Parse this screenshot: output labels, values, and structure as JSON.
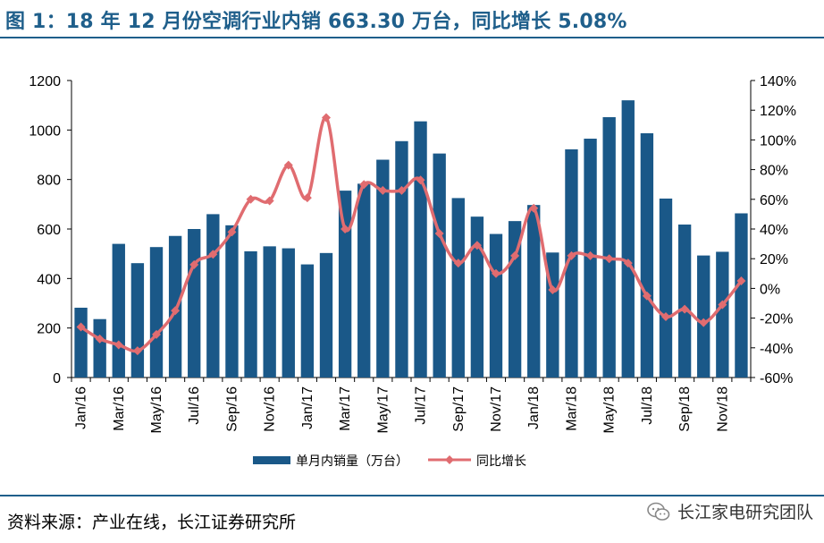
{
  "header": {
    "title": "图 1：18 年 12 月份空调行业内销 663.30 万台，同比增长 5.08%"
  },
  "footer": {
    "source": "资料来源：产业在线，长江证券研究所",
    "watermark": "长江家电研究团队",
    "watermark_icon": "wechat-icon"
  },
  "colors": {
    "accent": "#1f5f8b",
    "bar": "#1a5888",
    "line": "#e06c70"
  },
  "chart_data": {
    "type": "bar+line",
    "categories": [
      "Jan/16",
      "Feb/16",
      "Mar/16",
      "Apr/16",
      "May/16",
      "Jun/16",
      "Jul/16",
      "Aug/16",
      "Sep/16",
      "Oct/16",
      "Nov/16",
      "Dec/16",
      "Jan/17",
      "Feb/17",
      "Mar/17",
      "Apr/17",
      "May/17",
      "Jun/17",
      "Jul/17",
      "Aug/17",
      "Sep/17",
      "Oct/17",
      "Nov/17",
      "Dec/17",
      "Jan/18",
      "Feb/18",
      "Mar/18",
      "Apr/18",
      "May/18",
      "Jun/18",
      "Jul/18",
      "Aug/18",
      "Sep/18",
      "Oct/18",
      "Nov/18",
      "Dec/18"
    ],
    "x_tick_labels": [
      "Jan/16",
      "Mar/16",
      "May/16",
      "Jul/16",
      "Sep/16",
      "Nov/16",
      "Jan/17",
      "Mar/17",
      "May/17",
      "Jul/17",
      "Sep/17",
      "Nov/17",
      "Jan/18",
      "Mar/18",
      "May/18",
      "Jul/18",
      "Sep/18",
      "Nov/18"
    ],
    "series": [
      {
        "name": "单月内销量（万台）",
        "type": "bar",
        "axis": "left",
        "values": [
          282,
          236,
          540,
          462,
          527,
          572,
          600,
          660,
          615,
          510,
          530,
          522,
          457,
          503,
          755,
          783,
          880,
          955,
          1035,
          905,
          725,
          650,
          580,
          632,
          697,
          505,
          922,
          965,
          1052,
          1120,
          987,
          723,
          618,
          493,
          508,
          663.3
        ]
      },
      {
        "name": "同比增长",
        "type": "line",
        "axis": "right",
        "values": [
          -26,
          -34,
          -38,
          -42,
          -31,
          -15,
          16,
          23,
          38,
          60,
          59,
          83,
          61,
          115,
          40,
          70,
          66,
          66,
          73,
          37,
          17,
          29,
          10,
          22,
          54,
          -1,
          22,
          22,
          20,
          17,
          -5,
          -19,
          -14,
          -23,
          -11,
          5.08
        ]
      }
    ],
    "y_left": {
      "min": 0,
      "max": 1200,
      "step": 200,
      "tick_labels": [
        "0",
        "200",
        "400",
        "600",
        "800",
        "1000",
        "1200"
      ]
    },
    "y_right": {
      "min": -60,
      "max": 140,
      "step": 20,
      "tick_labels": [
        "-60%",
        "-40%",
        "-20%",
        "0%",
        "20%",
        "40%",
        "60%",
        "80%",
        "100%",
        "120%",
        "140%"
      ]
    },
    "legend": {
      "position": "bottom",
      "items": [
        "单月内销量（万台）",
        "同比增长"
      ]
    },
    "grid": false
  }
}
